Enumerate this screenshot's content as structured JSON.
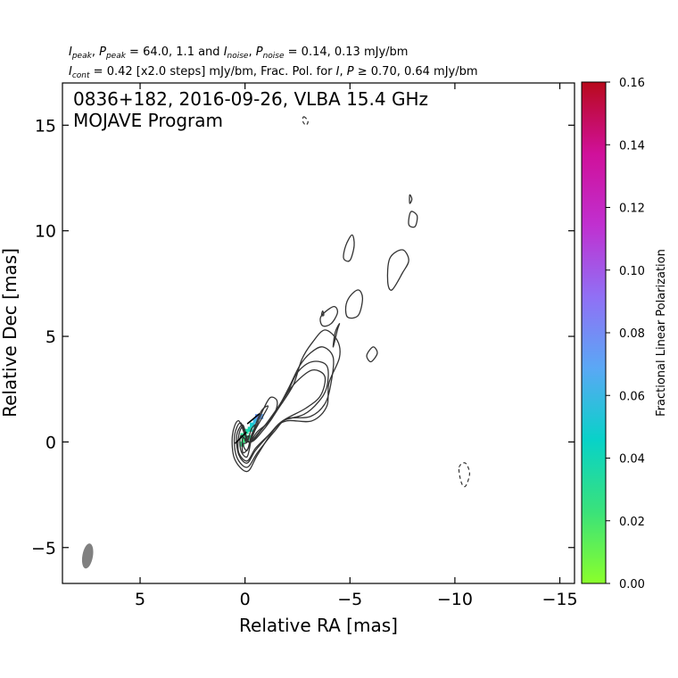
{
  "header": {
    "line1": {
      "v1": "peak",
      "t1": ", ",
      "v2": "peak",
      "t2": " = 64.0, 1.1 and ",
      "v3": "noise",
      "t3": ", ",
      "v4": "noise",
      "t4": " = 0.14, 0.13 mJy/bm"
    },
    "line2": {
      "v1": "cont",
      "t1": " = 0.42 [x2.0 steps] mJy/bm, Frac. Pol. for ",
      "t2": ", ",
      "t3": " ≥ 0.70, 0.64 mJy/bm"
    }
  },
  "annotation": {
    "line1": "0836+182, 2016-09-26, VLBA 15.4 GHz",
    "line2": "MOJAVE Program"
  },
  "chart_data": {
    "type": "contour",
    "xlabel": "Relative RA [mas]",
    "ylabel": "Relative Dec [mas]",
    "xlim": [
      8.7,
      -15.7
    ],
    "ylim": [
      -6.7,
      17.0
    ],
    "x_ticks": [
      {
        "value": 5,
        "label": "5"
      },
      {
        "value": 0,
        "label": "0"
      },
      {
        "value": -5,
        "label": "−5"
      },
      {
        "value": -10,
        "label": "−10"
      },
      {
        "value": -15,
        "label": "−15"
      }
    ],
    "y_ticks": [
      {
        "value": -5,
        "label": "−5"
      },
      {
        "value": 0,
        "label": "0"
      },
      {
        "value": 5,
        "label": "5"
      },
      {
        "value": 10,
        "label": "10"
      },
      {
        "value": 15,
        "label": "15"
      }
    ],
    "peak_intensity_mJy_per_beam": 64.0,
    "peak_polarized_mJy_per_beam": 1.1,
    "noise_I_mJy_per_beam": 0.14,
    "noise_P_mJy_per_beam": 0.13,
    "lowest_contour_mJy_per_beam": 0.42,
    "contour_step_factor": 2.0,
    "contours": [
      {
        "level": 1,
        "points": [
          [
            -0.2,
            0.0
          ],
          [
            -0.9,
            0.6
          ],
          [
            -1.6,
            1.6
          ],
          [
            -2.3,
            2.7
          ],
          [
            -2.7,
            3.9
          ],
          [
            -3.2,
            4.7
          ],
          [
            -3.8,
            5.3
          ],
          [
            -4.4,
            4.8
          ],
          [
            -4.5,
            4.0
          ],
          [
            -4.0,
            2.8
          ],
          [
            -3.9,
            1.7
          ],
          [
            -3.2,
            1.0
          ],
          [
            -2.0,
            1.0
          ],
          [
            -1.4,
            0.6
          ],
          [
            -0.6,
            -0.6
          ],
          [
            -0.1,
            -1.4
          ],
          [
            0.5,
            -0.8
          ],
          [
            0.6,
            0.3
          ],
          [
            0.3,
            1.0
          ]
        ]
      },
      {
        "level": 2,
        "points": [
          [
            -0.2,
            0.0
          ],
          [
            -0.8,
            0.6
          ],
          [
            -1.5,
            1.5
          ],
          [
            -2.1,
            2.6
          ],
          [
            -2.6,
            3.6
          ],
          [
            -3.1,
            4.2
          ],
          [
            -3.7,
            4.5
          ],
          [
            -4.2,
            4.0
          ],
          [
            -4.1,
            2.8
          ],
          [
            -3.8,
            1.8
          ],
          [
            -3.1,
            1.2
          ],
          [
            -2.0,
            1.1
          ],
          [
            -1.4,
            0.5
          ],
          [
            -0.6,
            -0.5
          ],
          [
            -0.1,
            -1.2
          ],
          [
            0.4,
            -0.7
          ],
          [
            0.5,
            0.3
          ],
          [
            0.2,
            0.9
          ]
        ]
      },
      {
        "level": 3,
        "points": [
          [
            -0.2,
            0.0
          ],
          [
            -0.8,
            0.6
          ],
          [
            -1.4,
            1.4
          ],
          [
            -2.0,
            2.3
          ],
          [
            -2.5,
            3.3
          ],
          [
            -3.2,
            3.8
          ],
          [
            -3.9,
            3.6
          ],
          [
            -3.9,
            2.6
          ],
          [
            -3.5,
            1.9
          ],
          [
            -2.8,
            1.3
          ],
          [
            -1.8,
            1.0
          ],
          [
            -1.2,
            0.4
          ],
          [
            -0.5,
            -0.4
          ],
          [
            -0.1,
            -1.0
          ],
          [
            0.3,
            -0.6
          ],
          [
            0.4,
            0.3
          ],
          [
            0.1,
            0.8
          ]
        ]
      },
      {
        "level": 4,
        "points": [
          [
            -0.2,
            0.0
          ],
          [
            -0.7,
            0.5
          ],
          [
            -1.3,
            1.2
          ],
          [
            -1.8,
            2.0
          ],
          [
            -2.4,
            2.8
          ],
          [
            -3.2,
            3.4
          ],
          [
            -3.8,
            3.1
          ],
          [
            -3.6,
            2.2
          ],
          [
            -2.9,
            1.6
          ],
          [
            -1.8,
            1.0
          ],
          [
            -1.1,
            0.3
          ],
          [
            -0.5,
            -0.3
          ],
          [
            -0.1,
            -0.9
          ],
          [
            0.3,
            -0.5
          ],
          [
            0.3,
            0.3
          ],
          [
            0.1,
            0.7
          ]
        ]
      },
      {
        "level": 5,
        "points": [
          [
            -0.2,
            0.0
          ],
          [
            -0.6,
            0.5
          ],
          [
            -1.2,
            1.0
          ],
          [
            -1.5,
            1.6
          ],
          [
            -1.5,
            2.0
          ],
          [
            -1.2,
            2.1
          ],
          [
            -0.9,
            1.6
          ],
          [
            -0.6,
            0.9
          ],
          [
            -0.3,
            0.1
          ],
          [
            -0.1,
            -0.7
          ],
          [
            0.2,
            -0.4
          ],
          [
            0.2,
            0.3
          ]
        ]
      },
      {
        "level": 6,
        "points": [
          [
            -0.2,
            0.0
          ],
          [
            -0.5,
            0.6
          ],
          [
            -0.9,
            1.3
          ],
          [
            -1.1,
            1.7
          ],
          [
            -0.8,
            1.5
          ],
          [
            -0.5,
            0.8
          ],
          [
            -0.2,
            -0.2
          ],
          [
            0.1,
            -0.5
          ],
          [
            0.1,
            0.2
          ]
        ]
      },
      {
        "level": 7,
        "points": [
          [
            -0.1,
            0.0
          ],
          [
            -0.3,
            0.6
          ],
          [
            -0.5,
            0.8
          ],
          [
            -0.3,
            0.3
          ],
          [
            -0.1,
            -0.4
          ],
          [
            0.1,
            -0.1
          ]
        ]
      },
      {
        "level": 8,
        "points": [
          [
            -0.1,
            0.0
          ],
          [
            -0.2,
            0.3
          ],
          [
            0.0,
            0.1
          ]
        ]
      },
      {
        "level": 1,
        "points": [
          [
            -3.6,
            5.9
          ],
          [
            -4.0,
            6.3
          ],
          [
            -4.3,
            6.4
          ],
          [
            -4.4,
            6.1
          ],
          [
            -4.1,
            5.6
          ],
          [
            -3.7,
            5.5
          ]
        ]
      },
      {
        "level": 1,
        "points": [
          [
            -4.8,
            6.4
          ],
          [
            -5.0,
            6.9
          ],
          [
            -5.4,
            7.2
          ],
          [
            -5.6,
            6.8
          ],
          [
            -5.4,
            6.0
          ],
          [
            -4.9,
            5.9
          ]
        ]
      },
      {
        "level": 1,
        "points": [
          [
            -4.2,
            4.5
          ],
          [
            -4.4,
            5.3
          ],
          [
            -4.5,
            5.6
          ],
          [
            -4.3,
            5.2
          ]
        ]
      },
      {
        "level": 1,
        "points": [
          [
            -4.8,
            9.3
          ],
          [
            -5.1,
            9.8
          ],
          [
            -5.2,
            9.3
          ],
          [
            -5.0,
            8.6
          ],
          [
            -4.7,
            8.7
          ]
        ]
      },
      {
        "level": 1,
        "points": [
          [
            -6.9,
            8.7
          ],
          [
            -7.5,
            9.1
          ],
          [
            -7.8,
            8.6
          ],
          [
            -7.5,
            8.0
          ],
          [
            -7.0,
            7.2
          ],
          [
            -6.8,
            7.6
          ]
        ]
      },
      {
        "level": 1,
        "points": [
          [
            -7.9,
            10.9
          ],
          [
            -8.2,
            10.7
          ],
          [
            -8.1,
            10.2
          ],
          [
            -7.8,
            10.3
          ]
        ]
      },
      {
        "level": 1,
        "points": [
          [
            -6.1,
            4.5
          ],
          [
            -6.3,
            4.2
          ],
          [
            -6.0,
            3.8
          ],
          [
            -5.8,
            4.1
          ]
        ]
      },
      {
        "level": 1,
        "points": [
          [
            -7.85,
            11.7
          ],
          [
            -7.95,
            11.5
          ],
          [
            -7.85,
            11.3
          ]
        ]
      },
      {
        "level": 1,
        "points": [
          [
            -3.7,
            6.2
          ],
          [
            -3.75,
            6.0
          ],
          [
            -3.65,
            6.0
          ]
        ]
      }
    ],
    "negative_contours": [
      {
        "points": [
          [
            -10.2,
            -1.2
          ],
          [
            -10.5,
            -1.0
          ],
          [
            -10.7,
            -1.5
          ],
          [
            -10.5,
            -2.1
          ],
          [
            -10.3,
            -1.9
          ]
        ]
      },
      {
        "points": [
          [
            -2.8,
            15.4
          ],
          [
            -3.0,
            15.2
          ],
          [
            -2.9,
            15.0
          ],
          [
            -2.75,
            15.2
          ]
        ]
      }
    ],
    "fractional_polarization_pixels": [
      {
        "x": 0.05,
        "y": 0.1,
        "value": 0.022
      },
      {
        "x": 0.1,
        "y": 0.3,
        "value": 0.03
      },
      {
        "x": -0.05,
        "y": 0.5,
        "value": 0.035
      },
      {
        "x": -0.2,
        "y": 0.2,
        "value": 0.028
      },
      {
        "x": -0.35,
        "y": 0.8,
        "value": 0.05
      },
      {
        "x": -0.5,
        "y": 1.0,
        "value": 0.06
      },
      {
        "x": -0.6,
        "y": 1.2,
        "value": 0.075
      },
      {
        "x": -0.75,
        "y": 1.2,
        "value": 0.07
      },
      {
        "x": -0.25,
        "y": 0.6,
        "value": 0.04
      },
      {
        "x": 0.15,
        "y": -0.1,
        "value": 0.026
      }
    ],
    "evpa_vectors": [
      {
        "x": 0.2,
        "y": 0.2,
        "angle_deg": 45
      },
      {
        "x": -0.4,
        "y": 1.1,
        "angle_deg": 40
      }
    ],
    "beam": {
      "x": 7.5,
      "y": -5.4,
      "major_mas": 1.2,
      "minor_mas": 0.5,
      "pa_deg": -10
    },
    "colorbar": {
      "label": "Fractional Linear Polarization",
      "range": [
        0.0,
        0.16
      ],
      "colors": [
        "#8aff2b",
        "#3ae27a",
        "#08d2c8",
        "#5aa8f5",
        "#9070f5",
        "#c030d0",
        "#d0109a",
        "#b80a1c"
      ],
      "ticks": [
        "0.00",
        "0.02",
        "0.04",
        "0.06",
        "0.08",
        "0.10",
        "0.12",
        "0.14",
        "0.16"
      ]
    }
  }
}
